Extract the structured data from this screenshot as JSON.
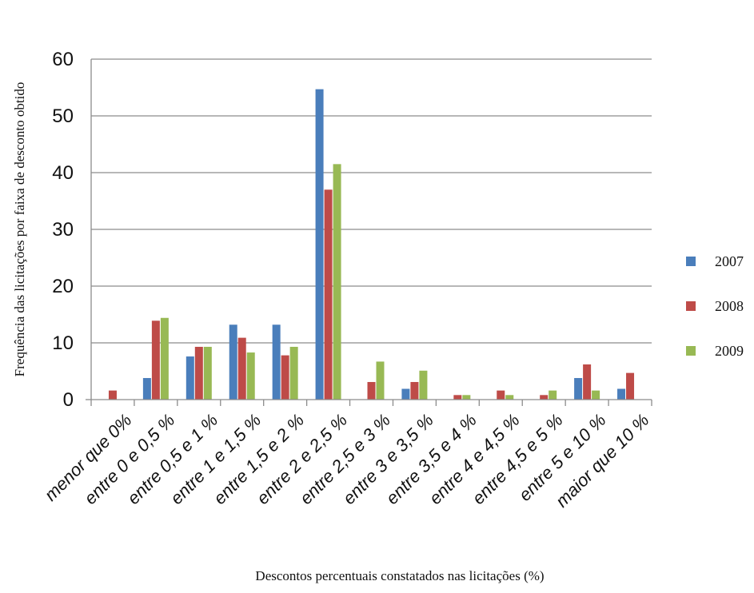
{
  "chart_data": {
    "type": "bar",
    "xlabel": "Descontos percentuais constatados nas licitações (%)",
    "ylabel": "Frequência das licitações por faixa de desconto obtido",
    "ylim": [
      0,
      60
    ],
    "yticks": [
      0,
      10,
      20,
      30,
      40,
      50,
      60
    ],
    "grid": true,
    "legend_position": "right",
    "categories": [
      "menor que 0%",
      "entre 0 e 0,5 %",
      "entre 0,5 e 1 %",
      "entre 1 e 1,5 %",
      "entre 1,5 e 2 %",
      "entre 2 e 2,5 %",
      "entre 2,5 e 3 %",
      "entre 3 e 3,5 %",
      "entre 3,5 e 4 %",
      "entre 4 e 4,5 %",
      "entre 4,5 e 5 %",
      "entre 5 e 10 %",
      "maior que 10 %"
    ],
    "series": [
      {
        "name": "2007",
        "color": "#4a7ebb",
        "values": [
          0,
          3.8,
          7.6,
          13.2,
          13.2,
          54.7,
          0,
          1.9,
          0,
          0,
          0,
          3.8,
          1.9
        ]
      },
      {
        "name": "2008",
        "color": "#be4b48",
        "values": [
          1.6,
          13.9,
          9.3,
          10.9,
          7.8,
          37.0,
          3.1,
          3.1,
          0.8,
          1.6,
          0.8,
          6.2,
          4.7
        ]
      },
      {
        "name": "2009",
        "color": "#98b954",
        "values": [
          0,
          14.4,
          9.3,
          8.3,
          9.3,
          41.5,
          6.7,
          5.1,
          0.8,
          0.8,
          1.6,
          1.6,
          0
        ]
      }
    ]
  }
}
